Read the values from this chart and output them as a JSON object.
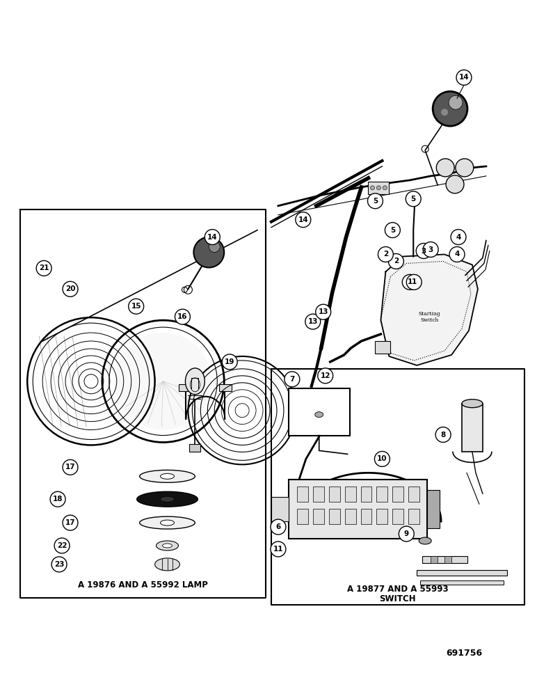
{
  "background_color": "#ffffff",
  "fig_width": 7.72,
  "fig_height": 10.0,
  "dpi": 100,
  "part_number": "691756",
  "lamp_label": "A 19876 AND A 55992 LAMP",
  "switch_label_line1": "A 19877 AND A 55993",
  "switch_label_line2": "SWITCH"
}
